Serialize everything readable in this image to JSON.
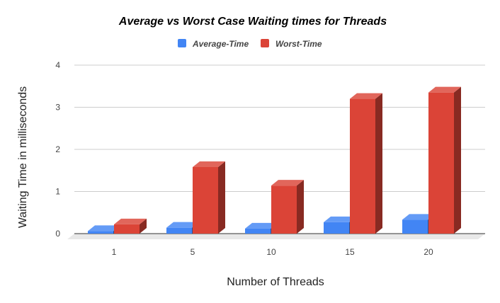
{
  "chart_data": {
    "type": "bar",
    "title": "Average vs Worst Case Waiting times for Threads",
    "xlabel": "Number of Threads",
    "ylabel": "Waiting Time in milliseconds",
    "categories": [
      "1",
      "5",
      "10",
      "15",
      "20"
    ],
    "series": [
      {
        "name": "Average-Time",
        "values": [
          0.06,
          0.14,
          0.12,
          0.27,
          0.33
        ],
        "color": "#4285f4"
      },
      {
        "name": "Worst-Time",
        "values": [
          0.22,
          1.58,
          1.14,
          3.2,
          3.35
        ],
        "color": "#db4437"
      }
    ],
    "ylim": [
      0,
      4
    ],
    "yticks": [
      "0",
      "1",
      "2",
      "3",
      "4"
    ],
    "grid": true,
    "legend_position": "top",
    "style": "3d-columns"
  }
}
